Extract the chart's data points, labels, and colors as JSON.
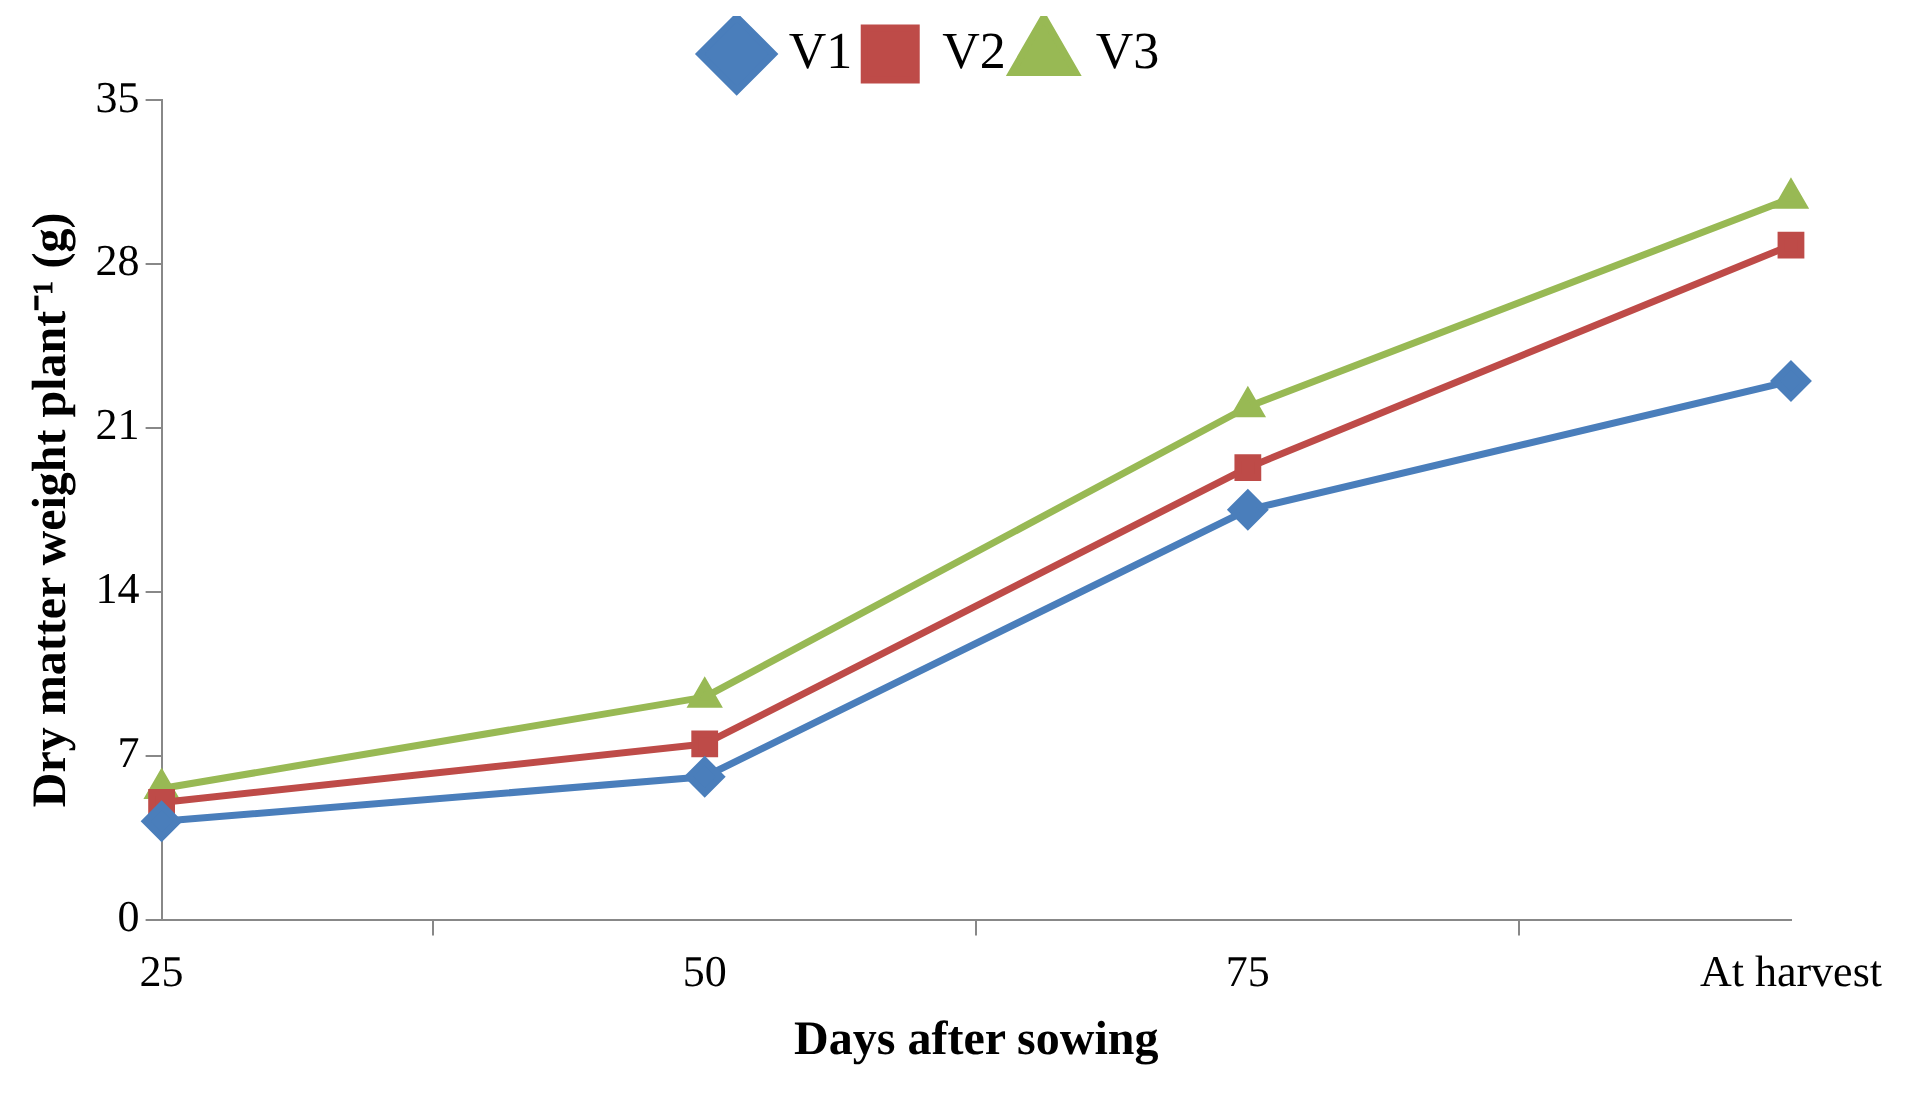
{
  "chart_data": {
    "type": "line",
    "xlabel": "Days after sowing",
    "ylabel": "Dry matter weight plant⁻¹ (g)",
    "categories": [
      "25",
      "50",
      "75",
      "At harvest"
    ],
    "series": [
      {
        "name": "V1",
        "color": "#4a7ebb",
        "marker": "diamond",
        "values": [
          4.2,
          6.1,
          17.5,
          23.0
        ]
      },
      {
        "name": "V2",
        "color": "#be4b48",
        "marker": "square",
        "values": [
          5.0,
          7.5,
          19.3,
          28.8
        ]
      },
      {
        "name": "V3",
        "color": "#98b954",
        "marker": "triangle",
        "values": [
          5.6,
          9.5,
          21.9,
          30.8
        ]
      }
    ],
    "ylim": [
      0,
      35
    ],
    "yticks": [
      0,
      7,
      14,
      21,
      28,
      35
    ],
    "grid": false,
    "legend": "top",
    "line_style": "solid"
  }
}
